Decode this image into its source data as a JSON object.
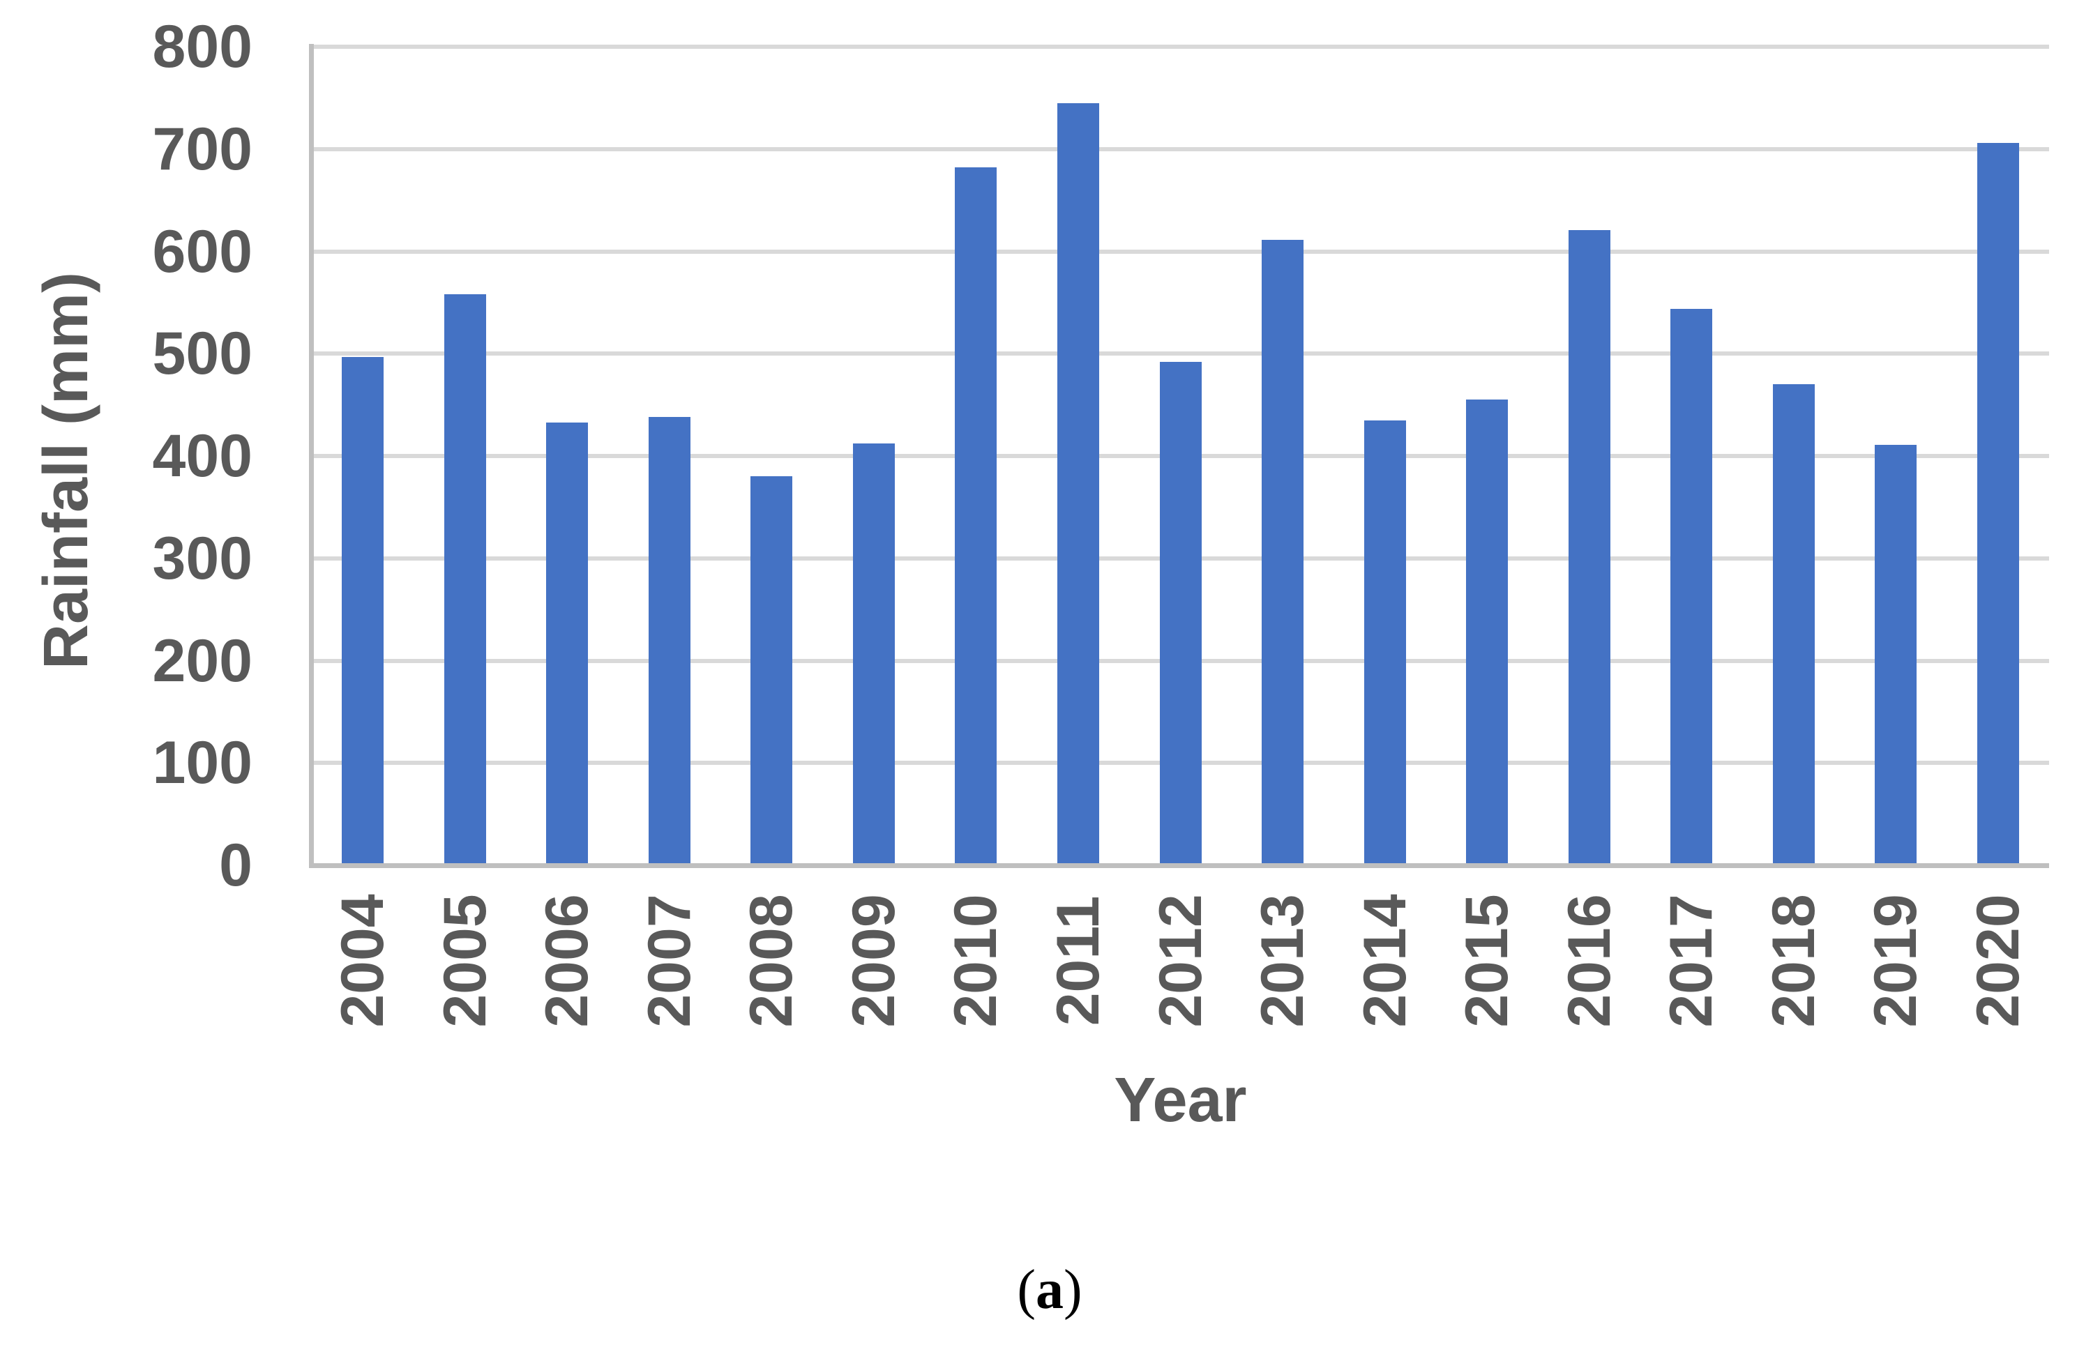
{
  "chart_data": {
    "type": "bar",
    "title": "",
    "xlabel": "Year",
    "ylabel": "Rainfall (mm)",
    "categories": [
      "2004",
      "2005",
      "2006",
      "2007",
      "2008",
      "2009",
      "2010",
      "2011",
      "2012",
      "2013",
      "2014",
      "2015",
      "2016",
      "2017",
      "2018",
      "2019",
      "2020"
    ],
    "values": [
      497,
      558,
      433,
      438,
      380,
      412,
      682,
      745,
      492,
      611,
      435,
      455,
      621,
      544,
      470,
      411,
      706
    ],
    "ylim": [
      0,
      800
    ],
    "yticks": [
      0,
      100,
      200,
      300,
      400,
      500,
      600,
      700,
      800
    ],
    "x_tick_rotation_deg": 90,
    "grid": "horizontal",
    "legend": "none",
    "bar_color": "#4472C4",
    "gridline_color": "#D9D9D9",
    "axis_line_color": "#BFBFBF",
    "text_color": "#595959"
  },
  "caption": {
    "open": "(",
    "letter": "a",
    "close": ")"
  }
}
